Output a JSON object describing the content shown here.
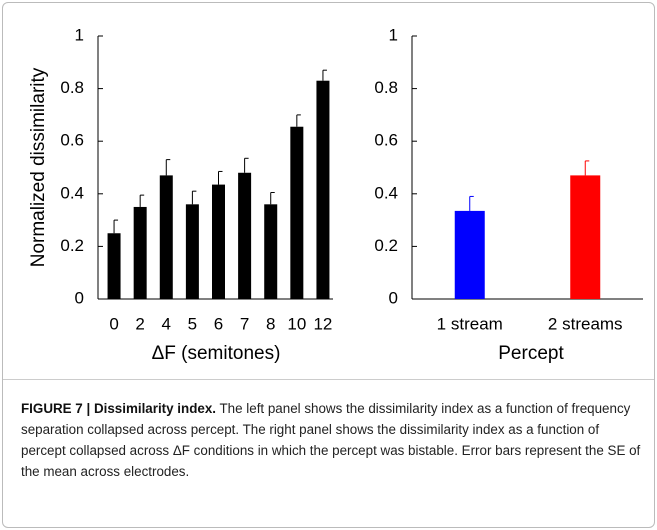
{
  "chart_data": [
    {
      "type": "bar",
      "ylabel": "Normalized dissimilarity",
      "xlabel": "ΔF (semitones)",
      "categories": [
        "0",
        "2",
        "4",
        "5",
        "6",
        "7",
        "8",
        "10",
        "12"
      ],
      "values": [
        0.25,
        0.35,
        0.47,
        0.36,
        0.435,
        0.48,
        0.36,
        0.655,
        0.83
      ],
      "errors": [
        0.05,
        0.045,
        0.06,
        0.05,
        0.05,
        0.055,
        0.045,
        0.045,
        0.04
      ],
      "colors": [
        "#000000",
        "#000000",
        "#000000",
        "#000000",
        "#000000",
        "#000000",
        "#000000",
        "#000000",
        "#000000"
      ],
      "ylim": [
        0,
        1
      ],
      "yticks": [
        0,
        0.2,
        0.4,
        0.6,
        0.8,
        1
      ]
    },
    {
      "type": "bar",
      "xlabel": "Percept",
      "categories": [
        "1 stream",
        "2 streams"
      ],
      "values": [
        0.335,
        0.47
      ],
      "errors": [
        0.055,
        0.055
      ],
      "colors": [
        "#0000ff",
        "#ff0000"
      ],
      "ylim": [
        0,
        1
      ],
      "yticks": [
        0,
        0.2,
        0.4,
        0.6,
        0.8,
        1
      ]
    }
  ],
  "caption": {
    "label": "FIGURE 7 | Dissimilarity index.",
    "text": "The left panel shows the dissimilarity index as a function of frequency separation collapsed across percept. The right panel shows the dissimilarity index as a function of percept collapsed across ΔF conditions in which the percept was bistable. Error bars represent the SE of the mean across electrodes."
  }
}
